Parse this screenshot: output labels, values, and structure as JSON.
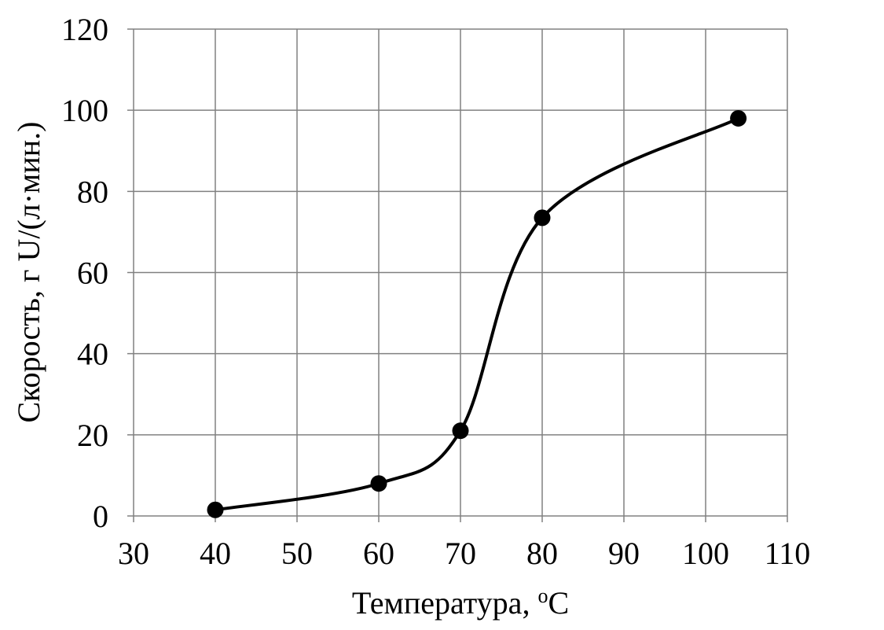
{
  "chart_data": {
    "type": "scatter",
    "xlabel": "Температура, ",
    "xlabel_sup": "o",
    "xlabel_unit": "C",
    "ylabel": "Скорость, г U/(л·мин.)",
    "xlim": [
      30,
      110
    ],
    "ylim": [
      0,
      120
    ],
    "x_ticks": [
      30,
      40,
      50,
      60,
      70,
      80,
      90,
      100,
      110
    ],
    "y_ticks": [
      0,
      20,
      40,
      60,
      80,
      100,
      120
    ],
    "grid": true,
    "smooth_line": true,
    "series": [
      {
        "x": [
          40,
          60,
          70,
          80,
          104
        ],
        "y": [
          1.5,
          8,
          21,
          73.5,
          98
        ]
      }
    ],
    "colors": {
      "line": "#000000",
      "marker": "#000000",
      "grid": "#808080"
    }
  }
}
